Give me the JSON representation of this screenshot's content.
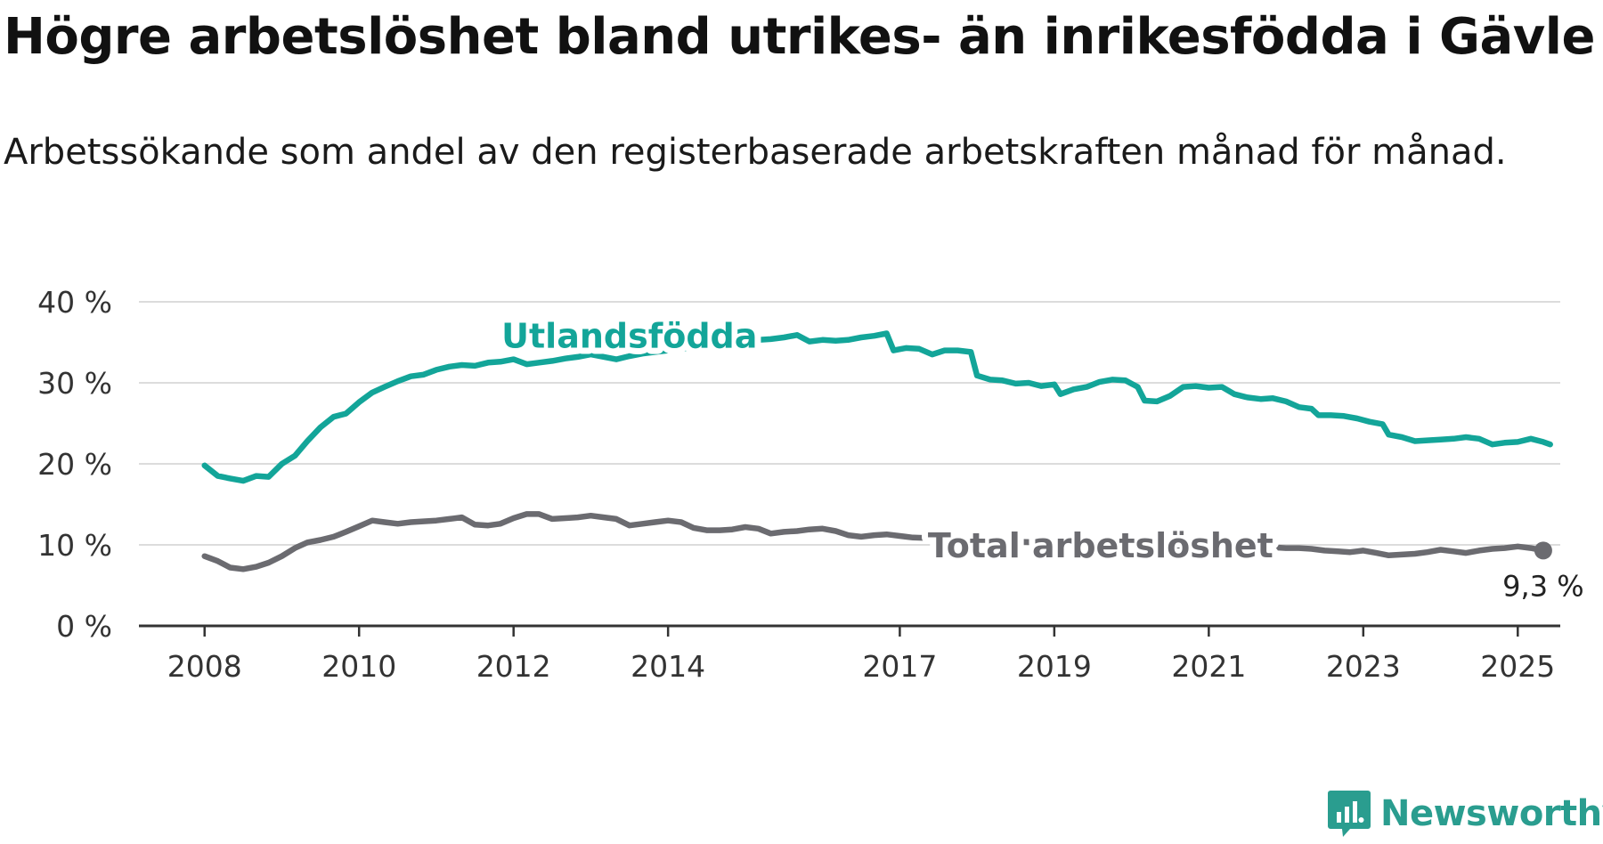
{
  "title": "Högre arbetslöshet bland utrikes- än inrikesfödda i Gävle",
  "subtitle": "Arbetssökande som andel av den registerbaserade arbetskraften månad för månad.",
  "brand": {
    "name": "Newsworthy",
    "color": "#2a9d8f",
    "icon": "newsworthy-logo-icon"
  },
  "colors": {
    "utlandsfodda": "#13a599",
    "total": "#6b6b70",
    "grid": "#dcdcdc",
    "axis": "#333333"
  },
  "chart_data": {
    "type": "line",
    "title": "Högre arbetslöshet bland utrikes- än inrikesfödda i Gävle",
    "subtitle": "Arbetssökande som andel av den registerbaserade arbetskraften månad för månad.",
    "xlabel": "",
    "ylabel": "",
    "ylim": [
      0,
      40
    ],
    "xlim": [
      2007.15,
      2025.55
    ],
    "y_ticks": [
      0,
      10,
      20,
      30,
      40
    ],
    "y_tick_labels": [
      "0 %",
      "10 %",
      "20 %",
      "30 %",
      "40 %"
    ],
    "x_ticks": [
      2008,
      2010,
      2012,
      2014,
      2017,
      2019,
      2021,
      2023,
      2025
    ],
    "x_tick_labels": [
      "2008",
      "2010",
      "2012",
      "2014",
      "2017",
      "2019",
      "2021",
      "2023",
      "2025"
    ],
    "grid": true,
    "series": [
      {
        "name": "Utlandsfödda",
        "label": "Utlandsfödda",
        "points": [
          [
            2008.0,
            19.8
          ],
          [
            2008.17,
            18.5
          ],
          [
            2008.33,
            18.2
          ],
          [
            2008.5,
            17.9
          ],
          [
            2008.67,
            18.5
          ],
          [
            2008.83,
            18.4
          ],
          [
            2009.0,
            20.0
          ],
          [
            2009.17,
            21.0
          ],
          [
            2009.33,
            22.8
          ],
          [
            2009.5,
            24.5
          ],
          [
            2009.67,
            25.8
          ],
          [
            2009.83,
            26.2
          ],
          [
            2010.0,
            27.6
          ],
          [
            2010.17,
            28.8
          ],
          [
            2010.33,
            29.5
          ],
          [
            2010.5,
            30.2
          ],
          [
            2010.67,
            30.8
          ],
          [
            2010.83,
            31.0
          ],
          [
            2011.0,
            31.6
          ],
          [
            2011.17,
            32.0
          ],
          [
            2011.33,
            32.2
          ],
          [
            2011.5,
            32.1
          ],
          [
            2011.67,
            32.5
          ],
          [
            2011.83,
            32.6
          ],
          [
            2012.0,
            32.9
          ],
          [
            2012.17,
            32.3
          ],
          [
            2012.33,
            32.5
          ],
          [
            2012.5,
            32.7
          ],
          [
            2012.67,
            33.0
          ],
          [
            2012.83,
            33.2
          ],
          [
            2013.0,
            33.5
          ],
          [
            2013.17,
            33.2
          ],
          [
            2013.33,
            32.9
          ],
          [
            2013.5,
            33.3
          ],
          [
            2013.67,
            33.6
          ],
          [
            2013.83,
            33.8
          ],
          [
            2014.0,
            34.0
          ],
          [
            2014.17,
            34.2
          ],
          [
            2014.33,
            34.4
          ],
          [
            2014.5,
            34.6
          ],
          [
            2014.67,
            34.8
          ],
          [
            2014.83,
            35.0
          ],
          [
            2015.0,
            35.1
          ],
          [
            2015.17,
            35.3
          ],
          [
            2015.33,
            35.4
          ],
          [
            2015.5,
            35.6
          ],
          [
            2015.67,
            35.9
          ],
          [
            2015.83,
            35.1
          ],
          [
            2016.0,
            35.3
          ],
          [
            2016.17,
            35.2
          ],
          [
            2016.33,
            35.3
          ],
          [
            2016.5,
            35.6
          ],
          [
            2016.67,
            35.8
          ],
          [
            2016.83,
            36.1
          ],
          [
            2016.92,
            34.0
          ],
          [
            2017.08,
            34.3
          ],
          [
            2017.25,
            34.2
          ],
          [
            2017.42,
            33.5
          ],
          [
            2017.58,
            34.0
          ],
          [
            2017.75,
            34.0
          ],
          [
            2017.92,
            33.8
          ],
          [
            2018.0,
            30.9
          ],
          [
            2018.17,
            30.4
          ],
          [
            2018.33,
            30.3
          ],
          [
            2018.5,
            29.9
          ],
          [
            2018.67,
            30.0
          ],
          [
            2018.83,
            29.6
          ],
          [
            2019.0,
            29.8
          ],
          [
            2019.08,
            28.6
          ],
          [
            2019.25,
            29.2
          ],
          [
            2019.42,
            29.5
          ],
          [
            2019.58,
            30.1
          ],
          [
            2019.75,
            30.4
          ],
          [
            2019.92,
            30.3
          ],
          [
            2020.08,
            29.5
          ],
          [
            2020.17,
            27.8
          ],
          [
            2020.33,
            27.7
          ],
          [
            2020.5,
            28.4
          ],
          [
            2020.67,
            29.5
          ],
          [
            2020.83,
            29.6
          ],
          [
            2021.0,
            29.4
          ],
          [
            2021.17,
            29.5
          ],
          [
            2021.33,
            28.6
          ],
          [
            2021.5,
            28.2
          ],
          [
            2021.67,
            28.0
          ],
          [
            2021.83,
            28.1
          ],
          [
            2022.0,
            27.7
          ],
          [
            2022.17,
            27.0
          ],
          [
            2022.33,
            26.8
          ],
          [
            2022.42,
            26.0
          ],
          [
            2022.58,
            26.0
          ],
          [
            2022.75,
            25.9
          ],
          [
            2022.92,
            25.6
          ],
          [
            2023.08,
            25.2
          ],
          [
            2023.25,
            24.9
          ],
          [
            2023.33,
            23.6
          ],
          [
            2023.5,
            23.3
          ],
          [
            2023.67,
            22.8
          ],
          [
            2023.83,
            22.9
          ],
          [
            2024.0,
            23.0
          ],
          [
            2024.17,
            23.1
          ],
          [
            2024.33,
            23.3
          ],
          [
            2024.5,
            23.1
          ],
          [
            2024.67,
            22.4
          ],
          [
            2024.83,
            22.6
          ],
          [
            2025.0,
            22.7
          ],
          [
            2025.17,
            23.1
          ],
          [
            2025.33,
            22.7
          ],
          [
            2025.42,
            22.4
          ]
        ]
      },
      {
        "name": "Total arbetslöshet",
        "label": "Total arbetslöshet",
        "points": [
          [
            2008.0,
            8.6
          ],
          [
            2008.17,
            8.0
          ],
          [
            2008.33,
            7.2
          ],
          [
            2008.5,
            7.0
          ],
          [
            2008.67,
            7.3
          ],
          [
            2008.83,
            7.8
          ],
          [
            2009.0,
            8.6
          ],
          [
            2009.17,
            9.6
          ],
          [
            2009.33,
            10.3
          ],
          [
            2009.5,
            10.6
          ],
          [
            2009.67,
            11.0
          ],
          [
            2009.83,
            11.6
          ],
          [
            2010.0,
            12.3
          ],
          [
            2010.17,
            13.0
          ],
          [
            2010.33,
            12.8
          ],
          [
            2010.5,
            12.6
          ],
          [
            2010.67,
            12.8
          ],
          [
            2010.83,
            12.9
          ],
          [
            2011.0,
            13.0
          ],
          [
            2011.17,
            13.2
          ],
          [
            2011.33,
            13.4
          ],
          [
            2011.5,
            12.5
          ],
          [
            2011.67,
            12.4
          ],
          [
            2011.83,
            12.6
          ],
          [
            2012.0,
            13.3
          ],
          [
            2012.17,
            13.8
          ],
          [
            2012.33,
            13.8
          ],
          [
            2012.5,
            13.2
          ],
          [
            2012.67,
            13.3
          ],
          [
            2012.83,
            13.4
          ],
          [
            2013.0,
            13.6
          ],
          [
            2013.17,
            13.4
          ],
          [
            2013.33,
            13.2
          ],
          [
            2013.5,
            12.4
          ],
          [
            2013.67,
            12.6
          ],
          [
            2013.83,
            12.8
          ],
          [
            2014.0,
            13.0
          ],
          [
            2014.17,
            12.8
          ],
          [
            2014.33,
            12.1
          ],
          [
            2014.5,
            11.8
          ],
          [
            2014.67,
            11.8
          ],
          [
            2014.83,
            11.9
          ],
          [
            2015.0,
            12.2
          ],
          [
            2015.17,
            12.0
          ],
          [
            2015.33,
            11.4
          ],
          [
            2015.5,
            11.6
          ],
          [
            2015.67,
            11.7
          ],
          [
            2015.83,
            11.9
          ],
          [
            2016.0,
            12.0
          ],
          [
            2016.17,
            11.7
          ],
          [
            2016.33,
            11.2
          ],
          [
            2016.5,
            11.0
          ],
          [
            2016.67,
            11.2
          ],
          [
            2016.83,
            11.3
          ],
          [
            2017.0,
            11.1
          ],
          [
            2017.17,
            10.9
          ],
          [
            2017.5,
            10.8
          ],
          [
            2017.83,
            10.6
          ],
          [
            2018.17,
            10.5
          ],
          [
            2018.5,
            10.4
          ],
          [
            2018.83,
            10.3
          ],
          [
            2019.17,
            10.2
          ],
          [
            2019.5,
            10.1
          ],
          [
            2019.83,
            10.0
          ],
          [
            2020.17,
            9.9
          ],
          [
            2020.5,
            9.8
          ],
          [
            2020.83,
            9.8
          ],
          [
            2021.17,
            9.7
          ],
          [
            2021.5,
            9.7
          ],
          [
            2021.83,
            9.7
          ],
          [
            2022.0,
            9.6
          ],
          [
            2022.17,
            9.6
          ],
          [
            2022.33,
            9.5
          ],
          [
            2022.5,
            9.3
          ],
          [
            2022.67,
            9.2
          ],
          [
            2022.83,
            9.1
          ],
          [
            2023.0,
            9.3
          ],
          [
            2023.17,
            9.0
          ],
          [
            2023.33,
            8.7
          ],
          [
            2023.5,
            8.8
          ],
          [
            2023.67,
            8.9
          ],
          [
            2023.83,
            9.1
          ],
          [
            2024.0,
            9.4
          ],
          [
            2024.17,
            9.2
          ],
          [
            2024.33,
            9.0
          ],
          [
            2024.5,
            9.3
          ],
          [
            2024.67,
            9.5
          ],
          [
            2024.83,
            9.6
          ],
          [
            2025.0,
            9.8
          ],
          [
            2025.17,
            9.6
          ],
          [
            2025.33,
            9.3
          ]
        ]
      }
    ],
    "annotations": [
      {
        "series": "Total arbetslöshet",
        "x": 2025.33,
        "y": 9.3,
        "text": "9,3 %"
      }
    ]
  }
}
